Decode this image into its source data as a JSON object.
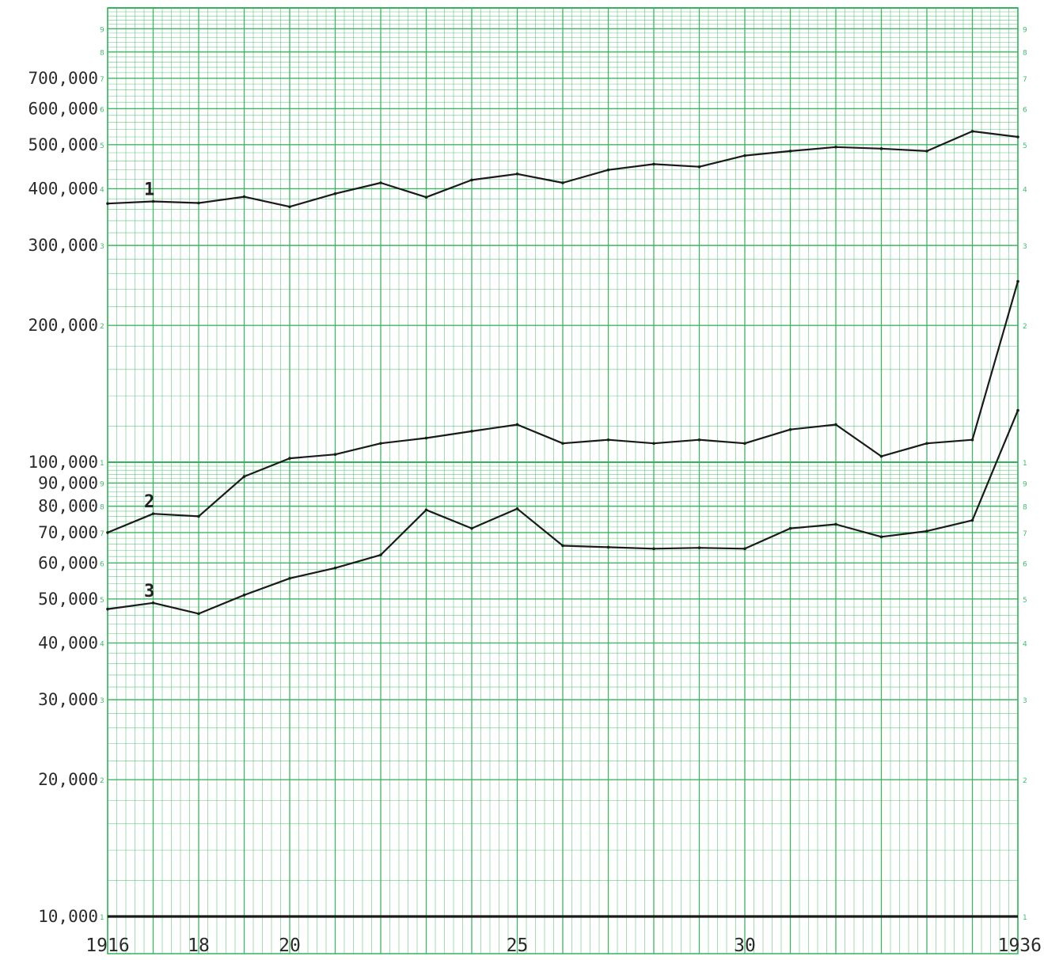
{
  "chart_data": {
    "type": "line",
    "y_scale": "log",
    "ylim": [
      10000,
      1000000
    ],
    "xlim": [
      1916,
      1936
    ],
    "grid": true,
    "colors": {
      "grid": "#34b45a",
      "line": "#1a1a1a",
      "background": "#ffffff"
    },
    "y_tick_labels": [
      {
        "value": 700000,
        "label": "700,000"
      },
      {
        "value": 600000,
        "label": "600,000"
      },
      {
        "value": 500000,
        "label": "500,000"
      },
      {
        "value": 400000,
        "label": "400,000"
      },
      {
        "value": 300000,
        "label": "300,000"
      },
      {
        "value": 200000,
        "label": "200,000"
      },
      {
        "value": 100000,
        "label": "100,000"
      },
      {
        "value": 90000,
        "label": "90,000"
      },
      {
        "value": 80000,
        "label": "80,000"
      },
      {
        "value": 70000,
        "label": "70,000"
      },
      {
        "value": 60000,
        "label": "60,000"
      },
      {
        "value": 50000,
        "label": "50,000"
      },
      {
        "value": 40000,
        "label": "40,000"
      },
      {
        "value": 30000,
        "label": "30,000"
      },
      {
        "value": 20000,
        "label": "20,000"
      },
      {
        "value": 10000,
        "label": "10,000"
      }
    ],
    "x_tick_labels": [
      {
        "value": 1916,
        "label": "1916"
      },
      {
        "value": 1918,
        "label": "18"
      },
      {
        "value": 1920,
        "label": "20"
      },
      {
        "value": 1925,
        "label": "25"
      },
      {
        "value": 1930,
        "label": "30"
      },
      {
        "value": 1936,
        "label": "1936"
      }
    ],
    "grid_cycle_labels": [
      "1",
      "2",
      "3",
      "4",
      "5",
      "6",
      "7",
      "8",
      "9"
    ],
    "series": [
      {
        "label": "1",
        "x": [
          1916,
          1917,
          1918,
          1919,
          1920,
          1921,
          1922,
          1923,
          1924,
          1925,
          1926,
          1927,
          1928,
          1929,
          1930,
          1931,
          1932,
          1933,
          1934,
          1935,
          1936
        ],
        "values": [
          371000,
          375000,
          372000,
          384000,
          365000,
          390000,
          412000,
          383000,
          418000,
          431000,
          412000,
          440000,
          453000,
          447000,
          473000,
          484000,
          494000,
          490000,
          484000,
          535000,
          520000
        ]
      },
      {
        "label": "2",
        "x": [
          1916,
          1917,
          1918,
          1919,
          1920,
          1921,
          1922,
          1923,
          1924,
          1925,
          1926,
          1927,
          1928,
          1929,
          1930,
          1931,
          1932,
          1933,
          1934,
          1935,
          1936
        ],
        "values": [
          70000,
          77000,
          76000,
          93000,
          102000,
          104000,
          110000,
          113000,
          117000,
          121000,
          110000,
          112000,
          110000,
          112000,
          110000,
          118000,
          121000,
          103000,
          110000,
          112000,
          250000
        ]
      },
      {
        "label": "3",
        "x": [
          1916,
          1917,
          1918,
          1919,
          1920,
          1921,
          1922,
          1923,
          1924,
          1925,
          1926,
          1927,
          1928,
          1929,
          1930,
          1931,
          1932,
          1933,
          1934,
          1935,
          1936
        ],
        "values": [
          47500,
          49000,
          46400,
          51000,
          55500,
          58500,
          62500,
          78500,
          71500,
          79000,
          65500,
          65000,
          64500,
          64800,
          64500,
          71500,
          73000,
          68500,
          70500,
          74500,
          130000
        ]
      },
      {
        "label": "",
        "x": [
          1916,
          1936
        ],
        "values": [
          10000,
          10000
        ]
      }
    ]
  }
}
